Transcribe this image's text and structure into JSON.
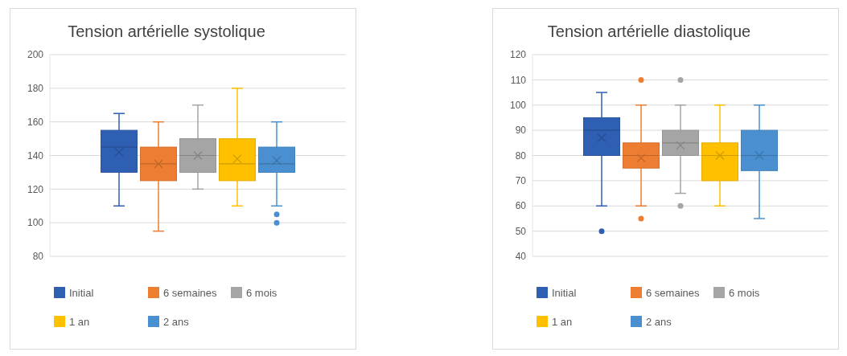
{
  "chart_data": [
    {
      "type": "box",
      "title": "Tension artérielle systolique",
      "categories": [
        null
      ],
      "ylim": [
        80,
        200
      ],
      "yticks": [
        80,
        100,
        120,
        140,
        160,
        180,
        200
      ],
      "grid": "y",
      "legend": "bottom",
      "marker": "circle",
      "series": [
        {
          "name": "Initial",
          "color": "#2f5fb3",
          "boxes": [
            {
              "low": 110,
              "q1": 130,
              "median": 145,
              "q3": 155,
              "high": 165,
              "mean": 142
            }
          ]
        },
        {
          "name": "6 semaines",
          "color": "#ed7d31",
          "boxes": [
            {
              "low": 95,
              "q1": 125,
              "median": 135,
              "q3": 145,
              "high": 160,
              "mean": 135
            }
          ]
        },
        {
          "name": "6 mois",
          "color": "#a5a5a5",
          "boxes": [
            {
              "low": 120,
              "q1": 130,
              "median": 140,
              "q3": 150,
              "high": 170,
              "mean": 140
            }
          ]
        },
        {
          "name": "1 an",
          "color": "#ffc000",
          "boxes": [
            {
              "low": 110,
              "q1": 125,
              "median": 135,
              "q3": 150,
              "high": 180,
              "mean": 138
            }
          ]
        },
        {
          "name": "2 ans",
          "color": "#4a90d0",
          "boxes": [
            {
              "low": 110,
              "q1": 130,
              "median": 135,
              "q3": 145,
              "high": 160,
              "mean": 137,
              "outliers": [
                105,
                100
              ]
            }
          ]
        }
      ]
    },
    {
      "type": "box",
      "title": "Tension artérielle diastolique",
      "categories": [
        null
      ],
      "ylim": [
        40,
        120
      ],
      "yticks": [
        40,
        50,
        60,
        70,
        80,
        90,
        100,
        110,
        120
      ],
      "grid": "y",
      "legend": "bottom",
      "marker": "circle",
      "series": [
        {
          "name": "Initial",
          "color": "#2f5fb3",
          "boxes": [
            {
              "low": 60,
              "q1": 80,
              "median": 90,
              "q3": 95,
              "high": 105,
              "mean": 87,
              "outliers": [
                50
              ]
            }
          ]
        },
        {
          "name": "6 semaines",
          "color": "#ed7d31",
          "boxes": [
            {
              "low": 60,
              "q1": 75,
              "median": 80,
              "q3": 85,
              "high": 100,
              "mean": 79,
              "outliers": [
                110,
                55
              ]
            }
          ]
        },
        {
          "name": "6 mois",
          "color": "#a5a5a5",
          "boxes": [
            {
              "low": 65,
              "q1": 80,
              "median": 85,
              "q3": 90,
              "high": 100,
              "mean": 84,
              "outliers": [
                110,
                60
              ]
            }
          ]
        },
        {
          "name": "1 an",
          "color": "#ffc000",
          "boxes": [
            {
              "low": 60,
              "q1": 70,
              "median": 80,
              "q3": 85,
              "high": 100,
              "mean": 80
            }
          ]
        },
        {
          "name": "2 ans",
          "color": "#4a90d0",
          "boxes": [
            {
              "low": 55,
              "q1": 74,
              "median": 80,
              "q3": 90,
              "high": 100,
              "mean": 80
            }
          ]
        }
      ]
    }
  ]
}
